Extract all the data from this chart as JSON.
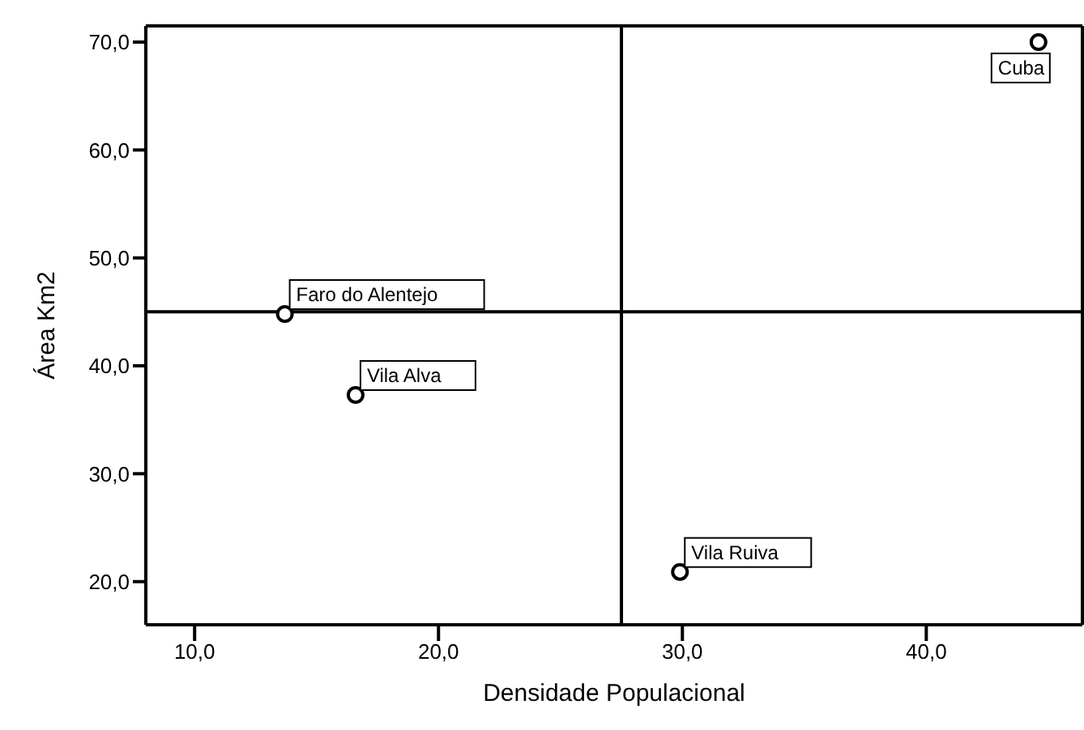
{
  "chart_data": {
    "type": "scatter",
    "xlabel": "Densidade Populacional",
    "ylabel": "Área Km2",
    "x": [
      13.7,
      16.6,
      29.9,
      44.6
    ],
    "values": [
      44.8,
      37.3,
      20.9,
      70.0
    ],
    "color": "#000000",
    "marker": "circle",
    "annotations": [
      {
        "text": "Faro do Alentejo",
        "x": 13.7,
        "y": 44.8
      },
      {
        "text": "Vila Alva",
        "x": 16.6,
        "y": 37.3
      },
      {
        "text": "Vila Ruiva",
        "x": 29.9,
        "y": 20.9
      },
      {
        "text": "Cuba",
        "x": 44.6,
        "y": 70.0
      }
    ],
    "ref_lines": [
      {
        "axis": "x",
        "value": 27.5,
        "color": "#000000"
      },
      {
        "axis": "y",
        "value": 45,
        "color": "#000000"
      }
    ],
    "xlim": [
      8,
      46.4
    ],
    "ylim": [
      16,
      71.5
    ],
    "xticks": [
      {
        "value": 10,
        "label": "10,0"
      },
      {
        "value": 20,
        "label": "20,0"
      },
      {
        "value": 30,
        "label": "30,0"
      },
      {
        "value": 40,
        "label": "40,0"
      }
    ],
    "yticks": [
      {
        "value": 20,
        "label": "20,0"
      },
      {
        "value": 30,
        "label": "30,0"
      },
      {
        "value": 40,
        "label": "40,0"
      },
      {
        "value": 50,
        "label": "50,0"
      },
      {
        "value": 60,
        "label": "60,0"
      },
      {
        "value": 70,
        "label": "70,0"
      }
    ],
    "grid": false,
    "legend": false
  }
}
